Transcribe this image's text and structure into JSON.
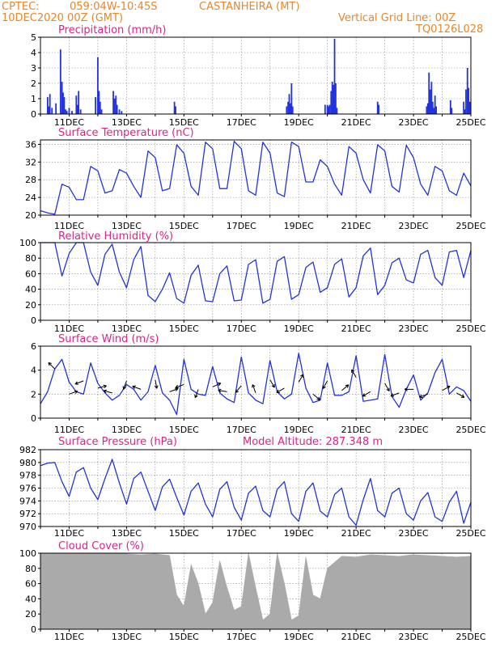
{
  "header": {
    "center": "CPTEC:",
    "coords": "059:04W-10:45S",
    "station": "CASTANHEIRA (MT)",
    "date": "10DEC2020 00Z (GMT)",
    "grid_note": "Vertical Grid Line: 00Z",
    "model_code": "TQ0126L028"
  },
  "colors": {
    "header": "#e8862a",
    "title": "#e0218a",
    "series": "#2233dd",
    "cloud": "#aaaaaa",
    "grid": "#888888"
  },
  "x_axis": {
    "labels": [
      "11DEC",
      "13DEC",
      "15DEC",
      "17DEC",
      "19DEC",
      "21DEC",
      "23DEC",
      "25DEC"
    ],
    "label_day_offsets": [
      1,
      3,
      5,
      7,
      9,
      11,
      13,
      15
    ],
    "range_days": [
      0,
      15
    ]
  },
  "chart_data": [
    {
      "type": "bar",
      "title": "Precipitation (mm/h)",
      "ylim": [
        0,
        5
      ],
      "yticks": [
        0,
        1,
        2,
        3,
        4,
        5
      ],
      "x_unit": "days since 10DEC2020 00Z",
      "x": [
        0.25,
        0.29,
        0.33,
        0.4,
        0.54,
        0.7,
        0.75,
        0.79,
        0.83,
        0.88,
        0.92,
        1.0,
        1.1,
        1.25,
        1.29,
        1.33,
        1.4,
        1.92,
        2.0,
        2.04,
        2.08,
        2.13,
        2.54,
        2.58,
        2.63,
        2.67,
        2.75,
        2.83,
        4.67,
        4.71,
        8.58,
        8.63,
        8.67,
        8.71,
        8.75,
        8.79,
        9.92,
        10.0,
        10.04,
        10.08,
        10.13,
        10.17,
        10.21,
        10.25,
        10.29,
        10.33,
        11.75,
        11.79,
        13.46,
        13.5,
        13.54,
        13.58,
        13.63,
        13.67,
        13.71,
        13.75,
        13.79,
        14.29,
        14.33,
        14.75,
        14.79,
        14.83,
        14.88,
        14.92,
        14.96
      ],
      "values": [
        1.1,
        0.5,
        1.3,
        0.4,
        0.7,
        4.2,
        2.1,
        1.4,
        1.1,
        0.3,
        0.2,
        0.4,
        0.2,
        1.2,
        0.6,
        1.5,
        0.3,
        1.1,
        3.7,
        1.5,
        0.8,
        0.3,
        1.5,
        1.0,
        1.2,
        0.6,
        0.3,
        0.2,
        0.8,
        0.5,
        0.5,
        0.8,
        1.3,
        0.7,
        2.0,
        0.5,
        0.6,
        0.6,
        0.5,
        0.6,
        1.5,
        2.1,
        1.9,
        4.9,
        2.0,
        0.4,
        0.8,
        0.6,
        0.5,
        0.7,
        2.7,
        1.6,
        2.1,
        0.8,
        0.4,
        1.2,
        0.5,
        0.9,
        0.4,
        0.8,
        0.3,
        1.6,
        3.0,
        1.7,
        0.8
      ]
    },
    {
      "type": "line",
      "title": "Surface Temperature (nC)",
      "ylim": [
        20,
        37
      ],
      "yticks": [
        20,
        24,
        28,
        32,
        36
      ],
      "x_unit": "days since 10DEC2020 00Z",
      "x": [
        0,
        0.25,
        0.5,
        0.75,
        1.0,
        1.25,
        1.5,
        1.75,
        2.0,
        2.25,
        2.5,
        2.75,
        3.0,
        3.25,
        3.5,
        3.75,
        4.0,
        4.25,
        4.5,
        4.75,
        5.0,
        5.25,
        5.5,
        5.75,
        6.0,
        6.25,
        6.5,
        6.75,
        7.0,
        7.25,
        7.5,
        7.75,
        8.0,
        8.25,
        8.5,
        8.75,
        9.0,
        9.25,
        9.5,
        9.75,
        10.0,
        10.25,
        10.5,
        10.75,
        11.0,
        11.25,
        11.5,
        11.75,
        12.0,
        12.25,
        12.5,
        12.75,
        13.0,
        13.25,
        13.5,
        13.75,
        14.0,
        14.25,
        14.5,
        14.75,
        15.0
      ],
      "values": [
        21,
        20.5,
        20.2,
        27,
        26.3,
        23.5,
        23.5,
        31,
        30,
        25,
        25.5,
        30.3,
        29.5,
        26.5,
        24,
        34.5,
        33,
        25.5,
        26,
        35.9,
        34,
        26.5,
        24.5,
        36.5,
        35,
        26,
        26,
        36.7,
        35,
        25.5,
        24.5,
        36.5,
        34,
        25,
        24.2,
        36.5,
        35.5,
        27.5,
        27.5,
        32.5,
        31,
        27,
        24.5,
        35.5,
        34,
        28,
        25,
        35.9,
        34.5,
        26.5,
        25.2,
        35.8,
        33,
        27,
        24.5,
        31,
        30,
        25.5,
        24.5,
        29.5,
        26.6
      ]
    },
    {
      "type": "line",
      "title": "Relative Humidity (%)",
      "ylim": [
        0,
        100
      ],
      "yticks": [
        0,
        20,
        40,
        60,
        80,
        100
      ],
      "x_unit": "days since 10DEC2020 00Z",
      "x": [
        0,
        0.25,
        0.5,
        0.75,
        1.0,
        1.25,
        1.5,
        1.75,
        2.0,
        2.25,
        2.5,
        2.75,
        3.0,
        3.25,
        3.5,
        3.75,
        4.0,
        4.25,
        4.5,
        4.75,
        5.0,
        5.25,
        5.5,
        5.75,
        6.0,
        6.25,
        6.5,
        6.75,
        7.0,
        7.25,
        7.5,
        7.75,
        8.0,
        8.25,
        8.5,
        8.75,
        9.0,
        9.25,
        9.5,
        9.75,
        10.0,
        10.25,
        10.5,
        10.75,
        11.0,
        11.25,
        11.5,
        11.75,
        12.0,
        12.25,
        12.5,
        12.75,
        13.0,
        13.25,
        13.5,
        13.75,
        14.0,
        14.25,
        14.5,
        14.75,
        15.0
      ],
      "values": [
        100,
        100,
        100,
        57,
        86,
        100,
        100,
        62,
        45,
        85,
        98,
        62,
        42,
        78,
        95,
        32,
        24,
        40,
        61,
        28,
        22,
        58,
        71,
        25,
        24,
        60,
        70,
        25,
        26,
        72,
        78,
        22,
        27,
        76,
        82,
        27,
        33,
        68,
        75,
        36,
        42,
        72,
        79,
        30,
        42,
        83,
        93,
        33,
        45,
        74,
        80,
        52,
        48,
        85,
        90,
        55,
        45,
        88,
        90,
        55,
        90
      ]
    },
    {
      "type": "line",
      "title": "Surface Wind (m/s)",
      "ylim": [
        0,
        6
      ],
      "yticks": [
        0,
        2,
        4,
        6
      ],
      "x_unit": "days since 10DEC2020 00Z",
      "x": [
        0,
        0.25,
        0.5,
        0.75,
        1.0,
        1.25,
        1.5,
        1.75,
        2.0,
        2.25,
        2.5,
        2.75,
        3.0,
        3.25,
        3.5,
        3.75,
        4.0,
        4.25,
        4.5,
        4.75,
        5.0,
        5.25,
        5.5,
        5.75,
        6.0,
        6.25,
        6.5,
        6.75,
        7.0,
        7.25,
        7.5,
        7.75,
        8.0,
        8.25,
        8.5,
        8.75,
        9.0,
        9.25,
        9.5,
        9.75,
        10.0,
        10.25,
        10.5,
        10.75,
        11.0,
        11.25,
        11.5,
        11.75,
        12.0,
        12.25,
        12.5,
        12.75,
        13.0,
        13.25,
        13.5,
        13.75,
        14.0,
        14.25,
        14.5,
        14.75,
        15.0
      ],
      "values": [
        1.2,
        2.2,
        4.1,
        4.9,
        3.0,
        2.2,
        2.0,
        4.6,
        2.9,
        2.1,
        1.5,
        1.9,
        2.8,
        2.4,
        1.5,
        2.2,
        4.4,
        2.1,
        1.5,
        0.3,
        4.9,
        2.4,
        2.0,
        1.9,
        4.3,
        2.1,
        1.6,
        1.3,
        5.1,
        2.1,
        1.5,
        1.2,
        4.8,
        2.2,
        1.6,
        2.0,
        5.4,
        2.5,
        1.3,
        1.5,
        4.6,
        1.9,
        1.9,
        2.2,
        5.2,
        1.4,
        1.5,
        1.6,
        5.3,
        1.8,
        0.9,
        2.4,
        3.6,
        1.5,
        2.1,
        3.8,
        4.9,
        2.0,
        2.6,
        2.3,
        1.4
      ],
      "arrows": {
        "x": [
          0.5,
          1.0,
          1.5,
          2.0,
          2.5,
          3.0,
          3.5,
          4.0,
          4.5,
          5.0,
          5.5,
          6.0,
          6.5,
          7.0,
          7.5,
          8.0,
          8.5,
          9.0,
          9.5,
          10.0,
          10.5,
          11.0,
          11.5,
          12.0,
          12.5,
          13.0,
          13.5,
          14.0,
          14.5
        ],
        "speed": [
          4.1,
          2.0,
          3.1,
          2.5,
          2.1,
          3.1,
          2.4,
          3.2,
          2.2,
          2.8,
          2.4,
          2.6,
          2.2,
          2.7,
          2.1,
          3.2,
          2.5,
          3.0,
          2.0,
          3.1,
          2.3,
          3.4,
          2.2,
          2.9,
          2.1,
          2.4,
          2.0,
          2.3,
          2.1
        ],
        "angle_deg": [
          135,
          20,
          200,
          15,
          165,
          250,
          160,
          280,
          20,
          200,
          250,
          25,
          170,
          230,
          110,
          300,
          210,
          60,
          320,
          240,
          40,
          120,
          210,
          300,
          200,
          180,
          200,
          30,
          330
        ]
      }
    },
    {
      "type": "line",
      "title": "Surface Pressure (hPa)",
      "annotation": "Model Altitude: 287.348 m",
      "ylim": [
        970,
        982
      ],
      "yticks": [
        970,
        972,
        974,
        976,
        978,
        980,
        982
      ],
      "x_unit": "days since 10DEC2020 00Z",
      "x": [
        0,
        0.25,
        0.5,
        0.75,
        1.0,
        1.25,
        1.5,
        1.75,
        2.0,
        2.25,
        2.5,
        2.75,
        3.0,
        3.25,
        3.5,
        3.75,
        4.0,
        4.25,
        4.5,
        4.75,
        5.0,
        5.25,
        5.5,
        5.75,
        6.0,
        6.25,
        6.5,
        6.75,
        7.0,
        7.25,
        7.5,
        7.75,
        8.0,
        8.25,
        8.5,
        8.75,
        9.0,
        9.25,
        9.5,
        9.75,
        10.0,
        10.25,
        10.5,
        10.75,
        11.0,
        11.25,
        11.5,
        11.75,
        12.0,
        12.25,
        12.5,
        12.75,
        13.0,
        13.25,
        13.5,
        13.75,
        14.0,
        14.25,
        14.5,
        14.75,
        15.0
      ],
      "values": [
        979.5,
        979.9,
        980.0,
        977.0,
        974.7,
        978.5,
        979.2,
        976.0,
        974.2,
        977.5,
        980.5,
        976.8,
        973.5,
        977.5,
        978.5,
        975.5,
        972.5,
        976.2,
        977.4,
        974.5,
        971.8,
        975.5,
        976.8,
        973.5,
        971.5,
        975.8,
        977.0,
        973.0,
        971.0,
        975.2,
        976.3,
        972.5,
        971.5,
        975.8,
        977.0,
        972.0,
        970.8,
        975.5,
        976.8,
        972.4,
        971.5,
        975.0,
        976.0,
        971.5,
        970.2,
        974.2,
        977.5,
        972.5,
        971.5,
        975.2,
        976.0,
        972.0,
        971.0,
        974.0,
        975.3,
        971.5,
        970.8,
        973.8,
        975.5,
        970.5,
        973.8
      ]
    },
    {
      "type": "area",
      "title": "Cloud Cover (%)",
      "ylim": [
        0,
        100
      ],
      "yticks": [
        0,
        20,
        40,
        60,
        80,
        100
      ],
      "x_unit": "days since 10DEC2020 00Z",
      "x": [
        0,
        0.5,
        1.0,
        1.5,
        2.0,
        2.5,
        3.0,
        3.5,
        4.0,
        4.5,
        4.75,
        5.0,
        5.25,
        5.5,
        5.75,
        6.0,
        6.25,
        6.5,
        6.75,
        7.0,
        7.25,
        7.5,
        7.75,
        8.0,
        8.25,
        8.5,
        8.75,
        9.0,
        9.25,
        9.5,
        9.75,
        10.0,
        10.5,
        11.0,
        11.5,
        12.0,
        12.5,
        13.0,
        13.5,
        14.0,
        14.5,
        15.0
      ],
      "values": [
        100,
        100,
        99,
        100,
        100,
        100,
        99,
        98,
        99,
        97,
        45,
        30,
        85,
        60,
        20,
        35,
        90,
        55,
        25,
        30,
        100,
        55,
        12,
        20,
        100,
        60,
        12,
        18,
        95,
        45,
        40,
        80,
        96,
        95,
        98,
        97,
        96,
        98,
        97,
        96,
        95,
        96
      ]
    }
  ]
}
